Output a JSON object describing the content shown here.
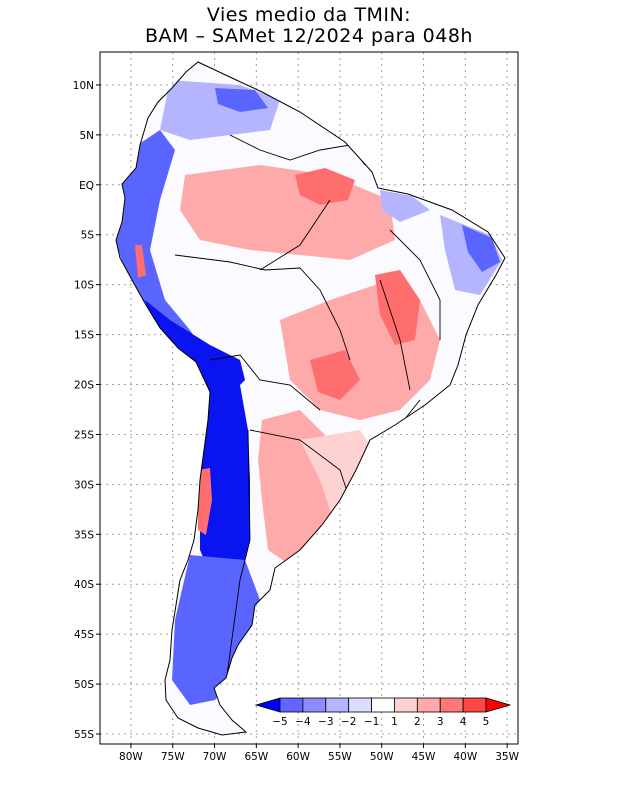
{
  "title": {
    "line1": "Vies medio da TMIN:",
    "line2": "BAM – SAMet 12/2024  para 048h"
  },
  "lat_ticks": [
    {
      "value": 10,
      "label": "10N"
    },
    {
      "value": 5,
      "label": "5N"
    },
    {
      "value": 0,
      "label": "EQ"
    },
    {
      "value": -5,
      "label": "5S"
    },
    {
      "value": -10,
      "label": "10S"
    },
    {
      "value": -15,
      "label": "15S"
    },
    {
      "value": -20,
      "label": "20S"
    },
    {
      "value": -25,
      "label": "25S"
    },
    {
      "value": -30,
      "label": "30S"
    },
    {
      "value": -35,
      "label": "35S"
    },
    {
      "value": -40,
      "label": "40S"
    },
    {
      "value": -45,
      "label": "45S"
    },
    {
      "value": -50,
      "label": "50S"
    },
    {
      "value": -55,
      "label": "55S"
    }
  ],
  "lon_ticks": [
    {
      "value": -80,
      "label": "80W"
    },
    {
      "value": -75,
      "label": "75W"
    },
    {
      "value": -70,
      "label": "70W"
    },
    {
      "value": -65,
      "label": "65W"
    },
    {
      "value": -60,
      "label": "60W"
    },
    {
      "value": -55,
      "label": "55W"
    },
    {
      "value": -50,
      "label": "50W"
    },
    {
      "value": -45,
      "label": "45W"
    },
    {
      "value": -40,
      "label": "40W"
    },
    {
      "value": -35,
      "label": "35W"
    }
  ],
  "colorbar": {
    "colors": [
      "#0000ff",
      "#6464ff",
      "#8c8cff",
      "#b4b4ff",
      "#dcdcff",
      "#ffffff",
      "#ffd2d2",
      "#ffaaaa",
      "#ff7878",
      "#ff4646",
      "#ff0000"
    ],
    "labels": [
      "−5",
      "−4",
      "−3",
      "−2",
      "−1",
      "1",
      "2",
      "3",
      "4",
      "5"
    ]
  },
  "palette": {
    "strong_cold": "#0a14f0",
    "cold": "#5a64ff",
    "mild_cold": "#b4b4ff",
    "neutral": "#fafaff",
    "mild_warm": "#ffd2d2",
    "warm": "#ffaaaa",
    "strong_warm": "#ff6e6e"
  }
}
